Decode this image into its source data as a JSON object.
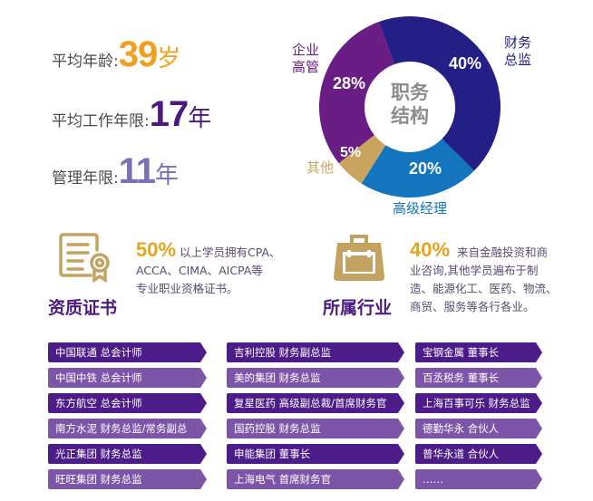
{
  "stats": [
    {
      "label": "平均年龄:",
      "value": "39",
      "unit": "岁",
      "color": "#f0a01c"
    },
    {
      "label": "平均工作年限:",
      "value": "17",
      "unit": "年",
      "color": "#4b1a80"
    },
    {
      "label": "管理年限:",
      "value": "11",
      "unit": "年",
      "color": "#7a70b8"
    }
  ],
  "donut": {
    "center_title": [
      "职务",
      "结构"
    ],
    "segments": [
      {
        "label": "财务总监",
        "label_lines": [
          "财务",
          "总监"
        ],
        "pct_text": "40%",
        "value": 40,
        "color": "#231f86"
      },
      {
        "label": "高级经理",
        "label_lines": [
          "高级经理"
        ],
        "pct_text": "20%",
        "value": 20,
        "color": "#1275bd"
      },
      {
        "label": "其他",
        "label_lines": [
          "其他"
        ],
        "pct_text": "5%",
        "value": 5,
        "color": "#c9a45e"
      },
      {
        "label": "企业高管",
        "label_lines": [
          "企业",
          "高管"
        ],
        "pct_text": "28%",
        "value": 28,
        "color": "#6a1d85"
      }
    ]
  },
  "chart_data": {
    "type": "pie",
    "title": "职务结构",
    "categories": [
      "财务总监",
      "高级经理",
      "其他",
      "企业高管"
    ],
    "values": [
      40,
      20,
      5,
      28
    ],
    "colors": [
      "#231f86",
      "#1275bd",
      "#c9a45e",
      "#6a1d85"
    ]
  },
  "sections": {
    "certificate": {
      "icon": "certificate-icon",
      "title": "资质证书",
      "pct": "50%",
      "text_first": "以上学员拥有CPA、",
      "text_lines": [
        "ACCA、CIMA、AICPA等",
        "专业职业资格证书。"
      ]
    },
    "industry": {
      "icon": "briefcase-icon",
      "title": "所属行业",
      "pct": "40%",
      "text_first": "来自金融投资和商",
      "text_lines": [
        "业咨询,其他学员遍布于制",
        "造、能源化工、医药、物流、",
        "商贸、服务等各行各业。"
      ]
    }
  },
  "alumni": {
    "columns": [
      [
        "中国联通 总会计师",
        "中国中铁 总会计师",
        "东方航空 总会计师",
        "南方水泥 财务总监/常务副总",
        "光正集团 财务总监",
        "旺旺集团 财务总监"
      ],
      [
        "吉利控股 财务副总监",
        "美的集团 财务总监",
        "复星医药 高级副总裁/首席财务官",
        "国药控股 财务总监",
        "申能集团 董事长",
        "上海电气 首席财务官"
      ],
      [
        "宝钢金属 董事长",
        "百丞税务 董事长",
        "上海百事可乐 财务总监",
        "德勤华永 合伙人",
        "普华永道 合伙人",
        "……"
      ]
    ]
  }
}
